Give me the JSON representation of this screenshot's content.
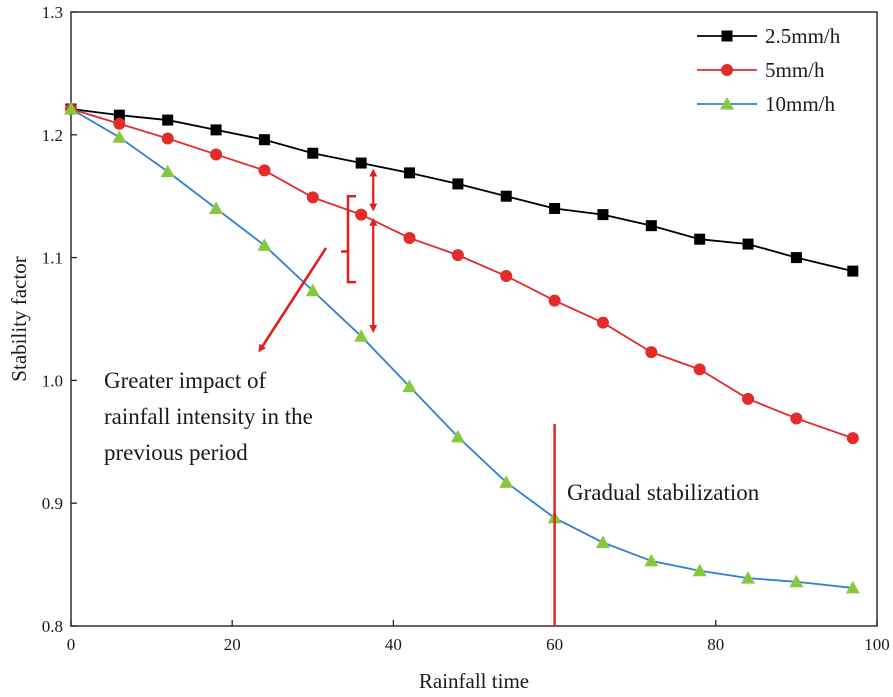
{
  "chart_data": {
    "type": "line",
    "title": "",
    "xlabel": "Rainfall time",
    "ylabel": "Stability factor",
    "xlim": [
      0,
      100
    ],
    "ylim": [
      0.8,
      1.3
    ],
    "xticks": [
      0,
      20,
      40,
      60,
      80,
      100
    ],
    "yticks": [
      0.8,
      0.9,
      1.0,
      1.1,
      1.2,
      1.3
    ],
    "xtick_labels": [
      "0",
      "20",
      "40",
      "60",
      "80",
      "100"
    ],
    "ytick_labels": [
      "0.8",
      "0.9",
      "1.0",
      "1.1",
      "1.2",
      "1.3"
    ],
    "legend_position": "top-right",
    "series": [
      {
        "name": "2.5mm/h",
        "color": "#000000",
        "marker": "square",
        "x": [
          0,
          6,
          12,
          18,
          24,
          30,
          36,
          42,
          48,
          54,
          60,
          66,
          72,
          78,
          84,
          90,
          97
        ],
        "y": [
          1.221,
          1.216,
          1.212,
          1.204,
          1.196,
          1.185,
          1.177,
          1.169,
          1.16,
          1.15,
          1.14,
          1.135,
          1.126,
          1.115,
          1.111,
          1.1,
          1.089
        ]
      },
      {
        "name": "5mm/h",
        "color": "#e32b2b",
        "marker": "circle",
        "x": [
          0,
          6,
          12,
          18,
          24,
          30,
          36,
          42,
          48,
          54,
          60,
          66,
          72,
          78,
          84,
          90,
          97
        ],
        "y": [
          1.221,
          1.209,
          1.197,
          1.184,
          1.171,
          1.149,
          1.135,
          1.116,
          1.102,
          1.085,
          1.065,
          1.047,
          1.023,
          1.009,
          0.985,
          0.969,
          0.953
        ]
      },
      {
        "name": "10mm/h",
        "color": "#2f7fd6",
        "marker_color": "#86c93c",
        "marker": "triangle",
        "x": [
          0,
          6,
          12,
          18,
          24,
          30,
          36,
          42,
          48,
          54,
          60,
          66,
          72,
          78,
          84,
          90,
          97
        ],
        "y": [
          1.221,
          1.198,
          1.17,
          1.14,
          1.11,
          1.073,
          1.036,
          0.995,
          0.954,
          0.917,
          0.888,
          0.868,
          0.853,
          0.845,
          0.839,
          0.836,
          0.831
        ]
      }
    ],
    "annotations": [
      {
        "id": "impact",
        "lines": [
          "Greater impact of",
          "rainfall intensity in the",
          "previous period"
        ]
      },
      {
        "id": "stabilization",
        "text": "Gradual stabilization"
      }
    ],
    "annotation_color": "#e01f1f"
  }
}
